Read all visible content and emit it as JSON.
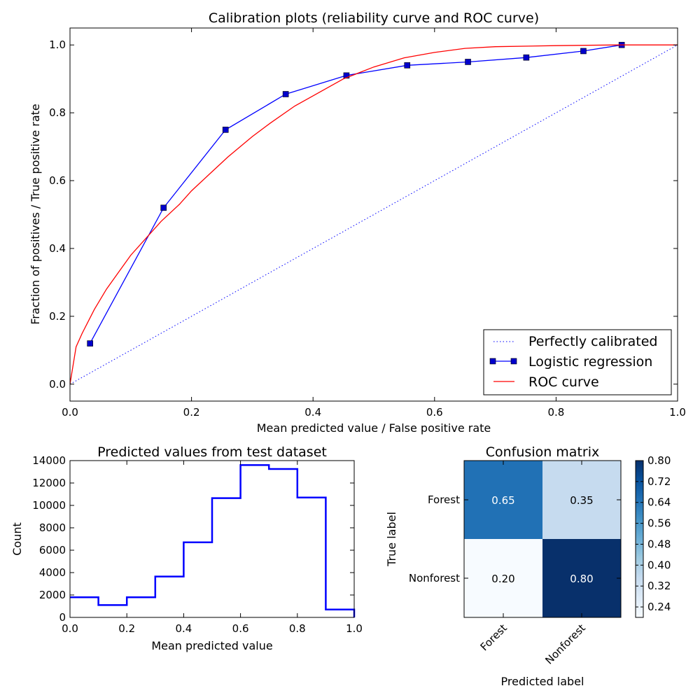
{
  "chart_data": [
    {
      "type": "line",
      "title": "Calibration plots  (reliability curve and ROC curve)",
      "xlabel": "Mean predicted value / False positive rate",
      "ylabel": "Fraction of positives / True positive rate",
      "xlim": [
        0.0,
        1.0
      ],
      "ylim": [
        -0.05,
        1.05
      ],
      "xticks": [
        "0.0",
        "0.2",
        "0.4",
        "0.6",
        "0.8",
        "1.0"
      ],
      "yticks": [
        "0.0",
        "0.2",
        "0.4",
        "0.6",
        "0.8",
        "1.0"
      ],
      "grid": false,
      "legend_position": "lower-right",
      "series": [
        {
          "name": "Perfectly calibrated",
          "style": "dotted",
          "color": "#0000ff",
          "x": [
            0.0,
            1.0
          ],
          "y": [
            0.0,
            1.0
          ]
        },
        {
          "name": "Logistic regression",
          "style": "line-square-markers",
          "color": "#0000ff",
          "x": [
            0.033,
            0.154,
            0.256,
            0.355,
            0.455,
            0.555,
            0.655,
            0.751,
            0.845,
            0.908
          ],
          "y": [
            0.12,
            0.52,
            0.75,
            0.855,
            0.91,
            0.94,
            0.95,
            0.963,
            0.982,
            1.0
          ]
        },
        {
          "name": "ROC curve",
          "style": "solid",
          "color": "#ff0000",
          "x": [
            0.0,
            0.01,
            0.02,
            0.04,
            0.06,
            0.08,
            0.1,
            0.125,
            0.15,
            0.18,
            0.2,
            0.23,
            0.26,
            0.3,
            0.33,
            0.37,
            0.4,
            0.45,
            0.5,
            0.55,
            0.6,
            0.65,
            0.7,
            0.8,
            0.9,
            1.0
          ],
          "y": [
            0.0,
            0.11,
            0.15,
            0.22,
            0.28,
            0.33,
            0.38,
            0.43,
            0.48,
            0.53,
            0.57,
            0.62,
            0.67,
            0.73,
            0.77,
            0.82,
            0.85,
            0.9,
            0.935,
            0.962,
            0.978,
            0.99,
            0.995,
            0.998,
            1.0,
            1.0
          ]
        }
      ]
    },
    {
      "type": "bar",
      "style": "step-histogram",
      "title": "Predicted values from test dataset",
      "xlabel": "Mean predicted value",
      "ylabel": "Count",
      "xlim": [
        0.0,
        1.0
      ],
      "ylim": [
        0,
        14000
      ],
      "xticks": [
        "0.0",
        "0.2",
        "0.4",
        "0.6",
        "0.8",
        "1.0"
      ],
      "yticks": [
        "0",
        "2000",
        "4000",
        "6000",
        "8000",
        "10000",
        "12000",
        "14000"
      ],
      "color": "#0000ff",
      "bin_edges": [
        0.0,
        0.1,
        0.2,
        0.3,
        0.4,
        0.5,
        0.6,
        0.7,
        0.8,
        0.9,
        1.0
      ],
      "values": [
        1800,
        1100,
        1800,
        3650,
        6700,
        10650,
        13600,
        13250,
        10700,
        700
      ]
    },
    {
      "type": "heatmap",
      "title": "Confusion matrix",
      "xlabel": "Predicted label",
      "ylabel": "True label",
      "row_labels": [
        "Forest",
        "Nonforest"
      ],
      "col_labels": [
        "Forest",
        "Nonforest"
      ],
      "values": [
        [
          0.65,
          0.35
        ],
        [
          0.2,
          0.8
        ]
      ],
      "cell_text": [
        [
          "0.65",
          "0.35"
        ],
        [
          "0.20",
          "0.80"
        ]
      ],
      "colormap": "Blues",
      "colorbar_range": [
        0.2,
        0.8
      ],
      "colorbar_ticks": [
        "0.80",
        "0.72",
        "0.64",
        "0.56",
        "0.48",
        "0.40",
        "0.32",
        "0.24"
      ]
    }
  ]
}
